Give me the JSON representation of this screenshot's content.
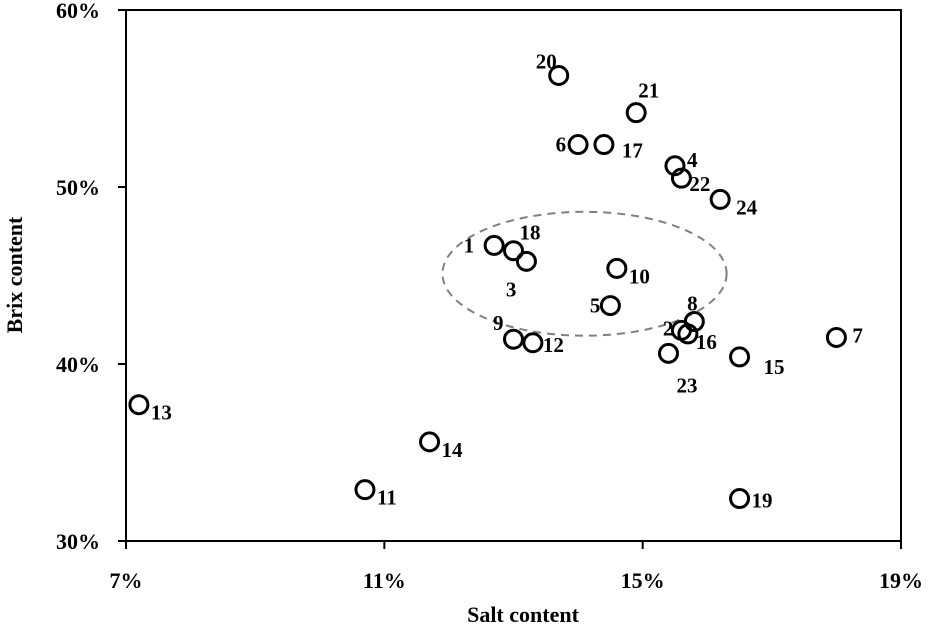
{
  "chart_data": {
    "type": "scatter",
    "title": "",
    "xlabel": "Salt content",
    "ylabel": "Brix content",
    "xlim": [
      7,
      19
    ],
    "ylim": [
      30,
      60
    ],
    "x_ticks": [
      7,
      11,
      15,
      19
    ],
    "x_tick_labels": [
      "7%",
      "11%",
      "15%",
      "19%"
    ],
    "y_ticks": [
      30,
      40,
      50,
      60
    ],
    "y_tick_labels": [
      "30%",
      "40%",
      "50%",
      "60%"
    ],
    "grid": false,
    "legend": "none",
    "marker": "open-circle",
    "points": [
      {
        "label": "1",
        "x": 12.7,
        "y": 46.7
      },
      {
        "label": "2",
        "x": 15.6,
        "y": 41.9
      },
      {
        "label": "3",
        "x": 13.2,
        "y": 45.8
      },
      {
        "label": "4",
        "x": 15.5,
        "y": 51.2
      },
      {
        "label": "5",
        "x": 14.5,
        "y": 43.3
      },
      {
        "label": "6",
        "x": 14.0,
        "y": 52.4
      },
      {
        "label": "7",
        "x": 18.0,
        "y": 41.5
      },
      {
        "label": "8",
        "x": 15.8,
        "y": 42.4
      },
      {
        "label": "9",
        "x": 13.0,
        "y": 41.4
      },
      {
        "label": "10",
        "x": 14.6,
        "y": 45.4
      },
      {
        "label": "11",
        "x": 10.7,
        "y": 32.9
      },
      {
        "label": "12",
        "x": 13.3,
        "y": 41.2
      },
      {
        "label": "13",
        "x": 7.2,
        "y": 37.7
      },
      {
        "label": "14",
        "x": 11.7,
        "y": 35.6
      },
      {
        "label": "15",
        "x": 16.5,
        "y": 40.4
      },
      {
        "label": "16",
        "x": 15.7,
        "y": 41.7
      },
      {
        "label": "17",
        "x": 14.4,
        "y": 52.4
      },
      {
        "label": "18",
        "x": 13.0,
        "y": 46.4
      },
      {
        "label": "19",
        "x": 16.5,
        "y": 32.4
      },
      {
        "label": "20",
        "x": 13.7,
        "y": 56.3
      },
      {
        "label": "21",
        "x": 14.9,
        "y": 54.2
      },
      {
        "label": "22",
        "x": 15.6,
        "y": 50.5
      },
      {
        "label": "23",
        "x": 15.4,
        "y": 40.6
      },
      {
        "label": "24",
        "x": 16.2,
        "y": 49.3
      }
    ],
    "annotations": [
      {
        "type": "dashed-ellipse",
        "center": [
          14.1,
          45.1
        ],
        "x_radius": 2.2,
        "y_radius": 3.5
      }
    ]
  }
}
